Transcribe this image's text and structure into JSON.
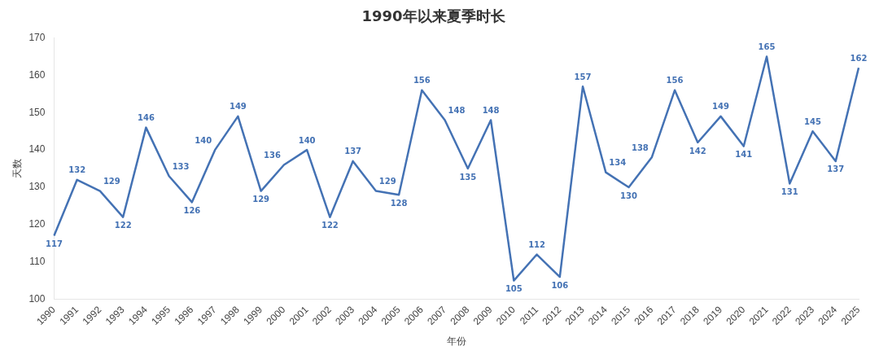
{
  "chart_data": {
    "type": "line",
    "title": "1990年以来夏季时长",
    "xlabel": "年份",
    "ylabel": "天数",
    "categories": [
      "1990",
      "1991",
      "1992",
      "1993",
      "1994",
      "1995",
      "1996",
      "1997",
      "1998",
      "1999",
      "2000",
      "2001",
      "2002",
      "2003",
      "2004",
      "2005",
      "2006",
      "2007",
      "2008",
      "2009",
      "2010",
      "2011",
      "2012",
      "2013",
      "2014",
      "2015",
      "2016",
      "2017",
      "2018",
      "2019",
      "2020",
      "2021",
      "2022",
      "2023",
      "2024",
      "2025"
    ],
    "series": [
      {
        "color": "#4472b4",
        "values": [
          117,
          132,
          129,
          122,
          146,
          133,
          126,
          140,
          149,
          129,
          136,
          140,
          122,
          137,
          129,
          128,
          156,
          148,
          135,
          148,
          105,
          112,
          106,
          157,
          134,
          130,
          138,
          156,
          142,
          149,
          141,
          165,
          131,
          145,
          137,
          162
        ]
      }
    ],
    "ylim": [
      100,
      170
    ],
    "yticks": [
      100,
      110,
      120,
      130,
      140,
      150,
      160,
      170
    ],
    "grid": false,
    "legend": false,
    "marker": "none",
    "line_style": "solid",
    "data_labels": true
  }
}
